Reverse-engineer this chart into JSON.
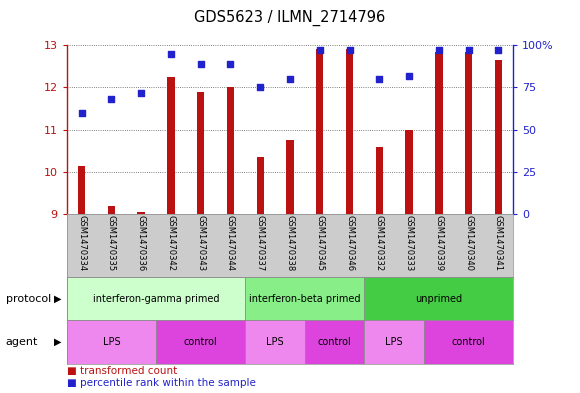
{
  "title": "GDS5623 / ILMN_2714796",
  "samples": [
    "GSM1470334",
    "GSM1470335",
    "GSM1470336",
    "GSM1470342",
    "GSM1470343",
    "GSM1470344",
    "GSM1470337",
    "GSM1470338",
    "GSM1470345",
    "GSM1470346",
    "GSM1470332",
    "GSM1470333",
    "GSM1470339",
    "GSM1470340",
    "GSM1470341"
  ],
  "transformed_count": [
    10.15,
    9.2,
    9.05,
    12.25,
    11.9,
    12.0,
    10.35,
    10.75,
    12.9,
    12.9,
    10.6,
    11.0,
    12.85,
    12.85,
    12.65
  ],
  "percentile_rank": [
    60,
    68,
    72,
    95,
    89,
    89,
    75,
    80,
    97,
    97,
    80,
    82,
    97,
    97,
    97
  ],
  "bar_color": "#bb1111",
  "dot_color": "#2222cc",
  "ylim_left": [
    9,
    13
  ],
  "ylim_right": [
    0,
    100
  ],
  "yticks_left": [
    9,
    10,
    11,
    12,
    13
  ],
  "yticks_right": [
    0,
    25,
    50,
    75,
    100
  ],
  "protocol_groups": [
    {
      "label": "interferon-gamma primed",
      "start": 0,
      "end": 6,
      "color": "#ccffcc"
    },
    {
      "label": "interferon-beta primed",
      "start": 6,
      "end": 10,
      "color": "#88ee88"
    },
    {
      "label": "unprimed",
      "start": 10,
      "end": 15,
      "color": "#44cc44"
    }
  ],
  "agent_groups": [
    {
      "label": "LPS",
      "start": 0,
      "end": 3,
      "color": "#ee88ee"
    },
    {
      "label": "control",
      "start": 3,
      "end": 6,
      "color": "#dd44dd"
    },
    {
      "label": "LPS",
      "start": 6,
      "end": 8,
      "color": "#ee88ee"
    },
    {
      "label": "control",
      "start": 8,
      "end": 10,
      "color": "#dd44dd"
    },
    {
      "label": "LPS",
      "start": 10,
      "end": 12,
      "color": "#ee88ee"
    },
    {
      "label": "control",
      "start": 12,
      "end": 15,
      "color": "#dd44dd"
    }
  ],
  "sample_bg_color": "#cccccc",
  "grid_color": "#555555",
  "bar_width": 0.25
}
